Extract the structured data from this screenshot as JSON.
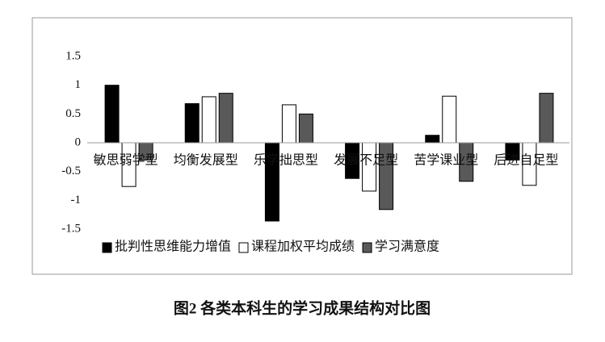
{
  "chart_data": {
    "type": "bar",
    "caption": "图2 各类本科生的学习成果结构对比图",
    "categories": [
      "敏思弱学型",
      "均衡发展型",
      "乐学拙思型",
      "发展不足型",
      "苦学课业型",
      "后进自足型"
    ],
    "series": [
      {
        "name": "批判性思维能力增值",
        "color": "#000000",
        "values": [
          1.0,
          0.68,
          -1.36,
          -0.62,
          0.13,
          -0.3
        ]
      },
      {
        "name": "课程加权平均成绩",
        "color": "#ffffff",
        "values": [
          -0.76,
          0.8,
          0.66,
          -0.84,
          0.81,
          -0.74
        ]
      },
      {
        "name": "学习满意度",
        "color": "#595959",
        "values": [
          -0.3,
          0.86,
          0.5,
          -1.16,
          -0.67,
          0.86
        ]
      }
    ],
    "ylim": [
      -1.5,
      1.5
    ],
    "yticks": [
      1.5,
      1,
      0.5,
      0,
      -0.5,
      -1,
      -1.5
    ],
    "grid": false,
    "legend": "bottom"
  }
}
